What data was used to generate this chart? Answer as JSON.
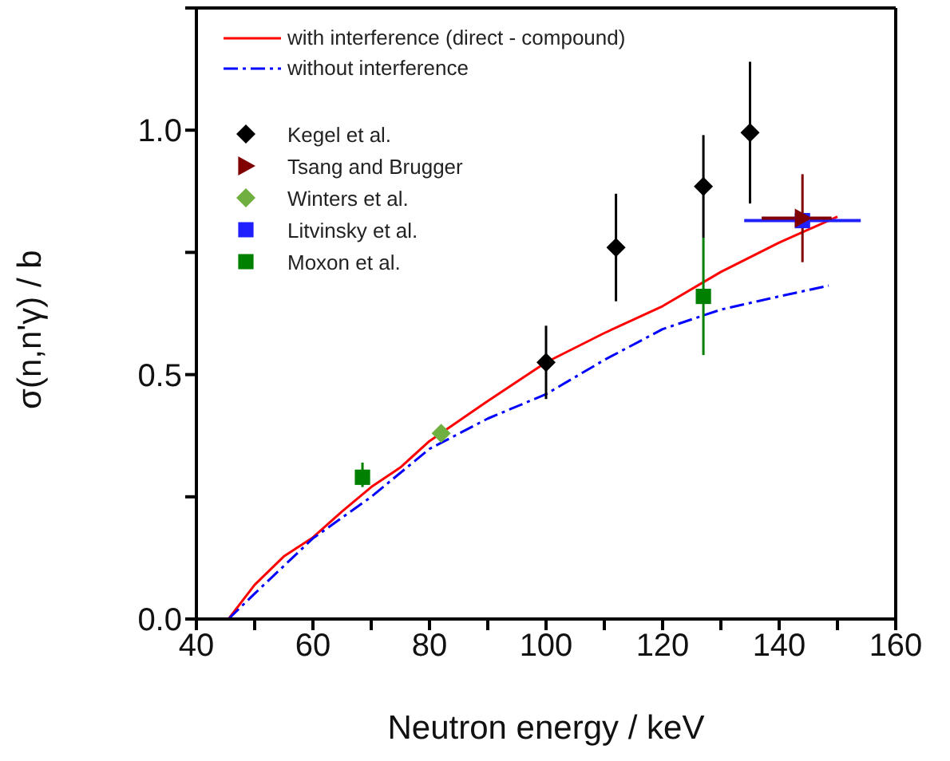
{
  "chart_data": {
    "type": "line",
    "xlabel": "Neutron energy / keV",
    "ylabel": "σ(n,n'γ) / b",
    "xlim": [
      40,
      160
    ],
    "xticks": [
      40,
      {
        "value": 50,
        "label": null
      },
      60,
      {
        "value": 70,
        "label": null
      },
      80,
      {
        "value": 90,
        "label": null
      },
      100,
      {
        "value": 110,
        "label": null
      },
      120,
      {
        "value": 130,
        "label": null
      },
      140,
      {
        "value": 150,
        "label": null
      },
      160
    ],
    "ylim": [
      0,
      1.25
    ],
    "yticks": [
      {
        "value": 0,
        "label": "0.0"
      },
      {
        "value": 0.25,
        "label": null
      },
      {
        "value": 0.5,
        "label": "0.5"
      },
      {
        "value": 0.75,
        "label": null
      },
      {
        "value": 1,
        "label": "1.0"
      },
      {
        "value": 1.25,
        "label": null
      }
    ],
    "grid": false,
    "legend": "top left",
    "series": [
      {
        "name": "with interference (direct - compound)",
        "color": "#ff0000",
        "line_style": "solid",
        "marker": "none",
        "x": [
          45.5,
          50,
          55,
          60,
          65,
          70,
          75,
          80,
          90,
          100,
          110,
          120,
          130,
          140,
          150
        ],
        "values": [
          0,
          0.07,
          0.128,
          0.167,
          0.22,
          0.27,
          0.31,
          0.364,
          0.446,
          0.525,
          0.585,
          0.64,
          0.71,
          0.77,
          0.823
        ]
      },
      {
        "name": "without interference",
        "color": "#0000ff",
        "line_style": "dashed",
        "marker": "none",
        "x": [
          45.5,
          50,
          60,
          70,
          80,
          90,
          100,
          110,
          120,
          130,
          140,
          148.5
        ],
        "values": [
          0,
          0.052,
          0.165,
          0.25,
          0.348,
          0.41,
          0.46,
          0.53,
          0.593,
          0.633,
          0.66,
          0.682
        ]
      },
      {
        "name": "Kegel et al.",
        "type": "scatter",
        "color": "#000000",
        "marker": "diamond",
        "x": [
          100,
          112,
          127,
          135
        ],
        "values": [
          0.525,
          0.76,
          0.885,
          0.995
        ],
        "errors": [
          [
            0.45,
            0.6
          ],
          [
            0.65,
            0.87
          ],
          [
            0.78,
            0.99
          ],
          [
            0.85,
            1.14
          ]
        ]
      },
      {
        "name": "Tsang and Brugger",
        "type": "scatter",
        "color": "#800000",
        "marker": "triangle",
        "x": [
          144
        ],
        "values": [
          0.82
        ],
        "errors": [
          [
            0.73,
            0.91
          ]
        ],
        "xerrors": [
          [
            137,
            149
          ]
        ]
      },
      {
        "name": "Winters et al.",
        "type": "scatter",
        "color": "#70b040",
        "marker": "diamond",
        "x": [
          82
        ],
        "values": [
          0.38
        ]
      },
      {
        "name": "Litvinsky et al.",
        "type": "scatter",
        "color": "#2020ff",
        "marker": "square",
        "x": [
          144
        ],
        "values": [
          0.815
        ],
        "xerrors": [
          [
            134,
            154
          ]
        ]
      },
      {
        "name": "Moxon et al.",
        "type": "scatter",
        "color": "#008000",
        "marker": "square",
        "x": [
          68.5,
          127
        ],
        "values": [
          0.29,
          0.66
        ],
        "errors": [
          [
            0.27,
            0.32
          ],
          [
            0.54,
            0.78
          ]
        ]
      }
    ]
  }
}
